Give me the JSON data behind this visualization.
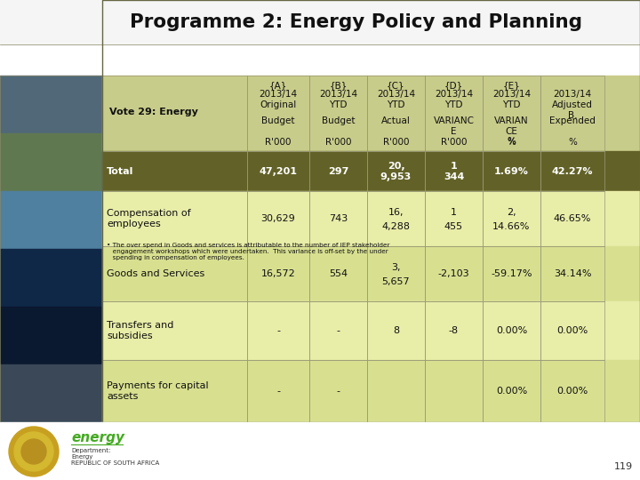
{
  "title": "Programme 2: Energy Policy and Planning",
  "bg_color": "#ffffff",
  "header_bg": "#c8cc8a",
  "total_row_bg": "#626228",
  "light_row_bg": "#e8eda8",
  "lighter_row_bg": "#d8e090",
  "note_bg": "#e8eda8",
  "row_label_header": "Vote 29: Energy",
  "col_headers": [
    [
      "{A}",
      "{B}",
      "{C}",
      "{D}",
      "{E}",
      ""
    ],
    [
      "2013/14",
      "2013/14",
      "2013/14",
      "2013/14",
      "2013/14",
      "2013/14"
    ],
    [
      "Original",
      "YTD",
      "YTD",
      "YTD",
      "YTD",
      "Adjusted\nB."
    ],
    [
      "Budget",
      "Budget",
      "Actual",
      "VARIANC\nE",
      "VARIAN\nCE\n%",
      "Expended"
    ],
    [
      "R'000",
      "R'000",
      "R'000",
      "R'000",
      "%",
      "%"
    ]
  ],
  "rows": [
    {
      "label": "Total",
      "col1": "47,201",
      "col2": "297",
      "col3_line1": "20,",
      "col3_line2": "9,953",
      "col4_line1": "1",
      "col4_line2": "344",
      "col5": "1.69%",
      "col6": "42.27%",
      "is_total": true
    },
    {
      "label": "Compensation of\nemployees",
      "col1": "30,629",
      "col2": "743",
      "col3_line1": "16,",
      "col3_line2": "4,288",
      "col4_line1": "1",
      "col4_line2": "455",
      "col5_line1": "2,",
      "col5_line2": "14.66%",
      "col6": "46.65%",
      "is_total": false
    },
    {
      "label": "Goods and Services",
      "col1": "16,572",
      "col2": "554",
      "col3_line1": "3,",
      "col3_line2": "5,657",
      "col4": "-2,103",
      "col5": "-59.17%",
      "col6": "34.14%",
      "is_total": false
    },
    {
      "label": "Transfers and\nsubsidies",
      "col1": "-",
      "col2": "-",
      "col3": "8",
      "col4": "-8",
      "col5": "0.00%",
      "col6": "0.00%",
      "is_total": false
    },
    {
      "label": "Payments for capital\nassets",
      "col1": "-",
      "col2": "-",
      "col3": "",
      "col4": "",
      "col5": "0.00%",
      "col6": "0.00%",
      "is_total": false
    }
  ],
  "note": "  The over spend in Goods and services is attributable to the number of IEP stakeholder\n   engagement workshops which were undertaken.  This variance is off-set by the under\n   spending in compensation of employees.",
  "page_num": "119",
  "img_colors": [
    "#3a5070",
    "#506040",
    "#607040",
    "#304060",
    "#102040",
    "#203040"
  ],
  "footer_green": "#44aa22",
  "footer_text_color": "#333333"
}
